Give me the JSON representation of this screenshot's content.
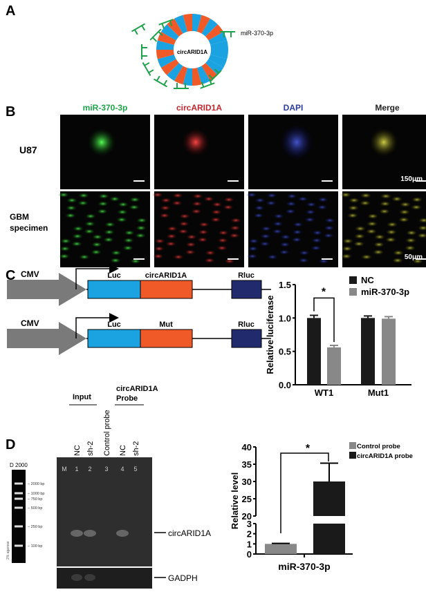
{
  "panels": {
    "a": "A",
    "b": "B",
    "c": "C",
    "d": "D"
  },
  "panelA": {
    "center_label": "circARID1A",
    "legend": "miR-370-3p",
    "colors": {
      "ring_blue": "#1aa3e0",
      "ring_orange": "#f05a28",
      "mirna_green": "#1fa34a"
    }
  },
  "panelB": {
    "columns": [
      "miR-370-3p",
      "circARID1A",
      "DAPI",
      "Merge"
    ],
    "column_colors": [
      "#1fa34a",
      "#c0262d",
      "#2a3b9c",
      "#222222"
    ],
    "rows": [
      "U87",
      "GBM specimen"
    ],
    "row_lines": [
      "GBM",
      "specimen"
    ],
    "scale_bars": [
      "150μm",
      "50μm"
    ]
  },
  "panelC": {
    "promoter": "CMV",
    "construct1": [
      "Luc",
      "circARID1A",
      "Rluc"
    ],
    "construct2": [
      "Luc",
      "Mut",
      "Rluc"
    ]
  },
  "panelD": {
    "gel": {
      "marker_name": "D 2000",
      "agarose": "2% agarose",
      "ladder": [
        "2000 bp",
        "1000 bp",
        "750 bp",
        "500 bp",
        "250 bp",
        "100 bp"
      ],
      "lane_numbers": [
        "M",
        "1",
        "2",
        "3",
        "4",
        "5"
      ],
      "lane_labels": [
        "NC",
        "sh-2",
        "Control probe",
        "NC",
        "sh-2"
      ],
      "groups": [
        "Input",
        "circARID1A",
        "Probe"
      ],
      "bands": [
        "circARID1A",
        "GADPH"
      ]
    }
  },
  "chart_data": [
    {
      "type": "bar",
      "ylabel": "Relative luciferase",
      "categories": [
        "WT1",
        "Mut1"
      ],
      "ylim": [
        0,
        1.5
      ],
      "yticks": [
        "0.0",
        "0.5",
        "1.0",
        "1.5"
      ],
      "legend_placement": "top-right",
      "series": [
        {
          "name": "NC",
          "color": "#1a1a1a",
          "values": [
            1.0,
            1.0
          ],
          "errors": [
            0.04,
            0.03
          ]
        },
        {
          "name": "miR-370-3p",
          "color": "#888888",
          "values": [
            0.56,
            0.99
          ],
          "errors": [
            0.03,
            0.03
          ]
        }
      ],
      "annotation": "*"
    },
    {
      "type": "bar",
      "ylabel": "Relative level",
      "categories": [
        "miR-370-3p"
      ],
      "broken_axis": [
        [
          0,
          3
        ],
        [
          20,
          40
        ]
      ],
      "yticks": [
        "0",
        "1",
        "2",
        "3",
        "20",
        "25",
        "30",
        "35",
        "40"
      ],
      "legend_placement": "top-right",
      "series": [
        {
          "name": "Control probe",
          "color": "#888888",
          "values": [
            1.0
          ],
          "errors": [
            0.05
          ]
        },
        {
          "name": "circARID1A probe",
          "color": "#1a1a1a",
          "values": [
            30
          ],
          "errors": [
            5.3
          ]
        }
      ],
      "annotation": "*"
    }
  ]
}
